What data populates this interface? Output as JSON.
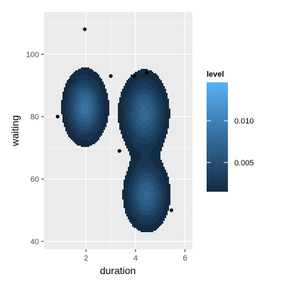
{
  "chart_data": {
    "type": "density-contour-with-scatter",
    "xlabel": "duration",
    "ylabel": "waiting",
    "xlim": [
      0.3,
      6.3
    ],
    "ylim": [
      37.5,
      113.5
    ],
    "x_ticks": [
      2,
      4,
      6
    ],
    "y_ticks": [
      40,
      60,
      80,
      100
    ],
    "grid": true,
    "points": [
      {
        "x": 0.85,
        "y": 80
      },
      {
        "x": 1.95,
        "y": 108
      },
      {
        "x": 3.0,
        "y": 93
      },
      {
        "x": 3.35,
        "y": 69
      },
      {
        "x": 3.95,
        "y": 93
      },
      {
        "x": 4.45,
        "y": 94
      },
      {
        "x": 5.45,
        "y": 50
      }
    ],
    "density_peaks": [
      {
        "x": 1.95,
        "y": 83,
        "level": 0.0085
      },
      {
        "x": 4.35,
        "y": 81,
        "level": 0.0075
      },
      {
        "x": 4.45,
        "y": 55,
        "level": 0.0073
      }
    ],
    "legend": {
      "title": "level",
      "placement": "right",
      "breaks": [
        0.005,
        0.01
      ],
      "break_labels": [
        "0.005",
        "0.010"
      ],
      "range": [
        0.0015,
        0.0146
      ],
      "color_low": "#132B43",
      "color_high": "#56B1F7"
    },
    "colors": {
      "panel_background": "#EBEBEB",
      "grid_major": "#ffffff",
      "grid_minor": "#F5F5F5",
      "contour_edge": "#1B3650",
      "point": "#000000"
    }
  }
}
